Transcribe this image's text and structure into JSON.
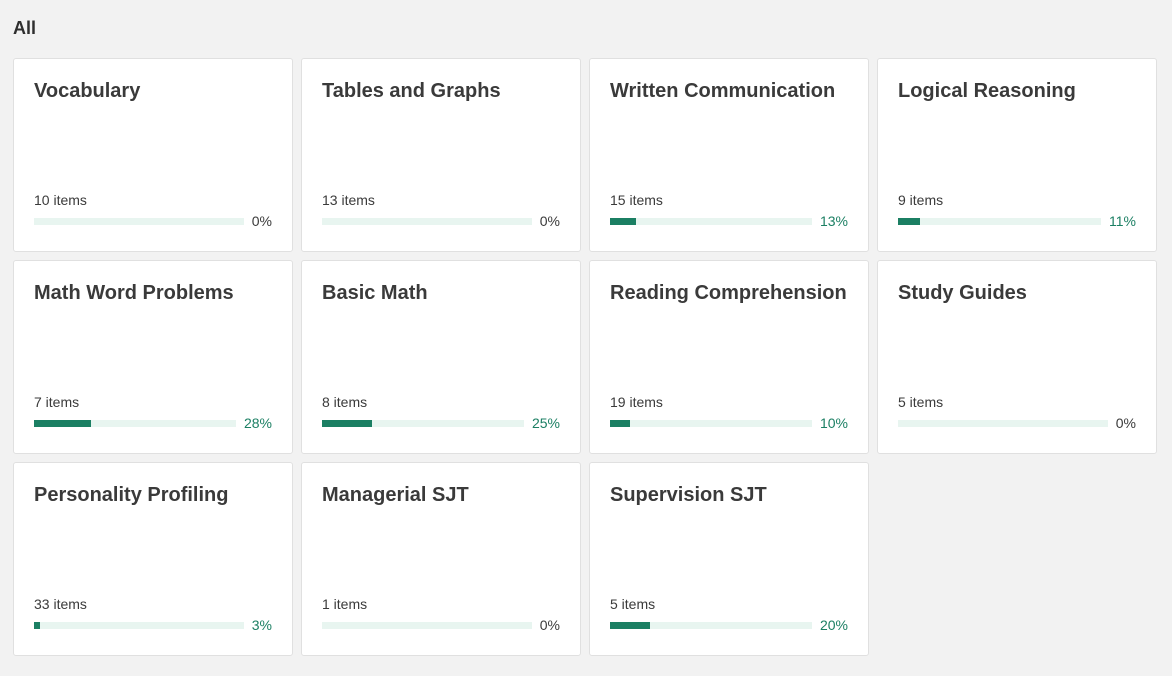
{
  "section": {
    "title": "All"
  },
  "colors": {
    "accent": "#1b7f63",
    "track": "#e8f5f0",
    "text": "#3a3a3a"
  },
  "cards": [
    {
      "title": "Vocabulary",
      "count": "10 items",
      "percent_label": "0%",
      "progress": 0
    },
    {
      "title": "Tables and Graphs",
      "count": "13 items",
      "percent_label": "0%",
      "progress": 0
    },
    {
      "title": "Written Communication",
      "count": "15 items",
      "percent_label": "13%",
      "progress": 13
    },
    {
      "title": "Logical Reasoning",
      "count": "9 items",
      "percent_label": "11%",
      "progress": 11
    },
    {
      "title": "Math Word Problems",
      "count": "7 items",
      "percent_label": "28%",
      "progress": 28
    },
    {
      "title": "Basic Math",
      "count": "8 items",
      "percent_label": "25%",
      "progress": 25
    },
    {
      "title": "Reading Comprehension",
      "count": "19 items",
      "percent_label": "10%",
      "progress": 10
    },
    {
      "title": "Study Guides",
      "count": "5 items",
      "percent_label": "0%",
      "progress": 0
    },
    {
      "title": "Personality Profiling",
      "count": "33 items",
      "percent_label": "3%",
      "progress": 3
    },
    {
      "title": "Managerial SJT",
      "count": "1 items",
      "percent_label": "0%",
      "progress": 0
    },
    {
      "title": "Supervision SJT",
      "count": "5 items",
      "percent_label": "20%",
      "progress": 20
    }
  ]
}
